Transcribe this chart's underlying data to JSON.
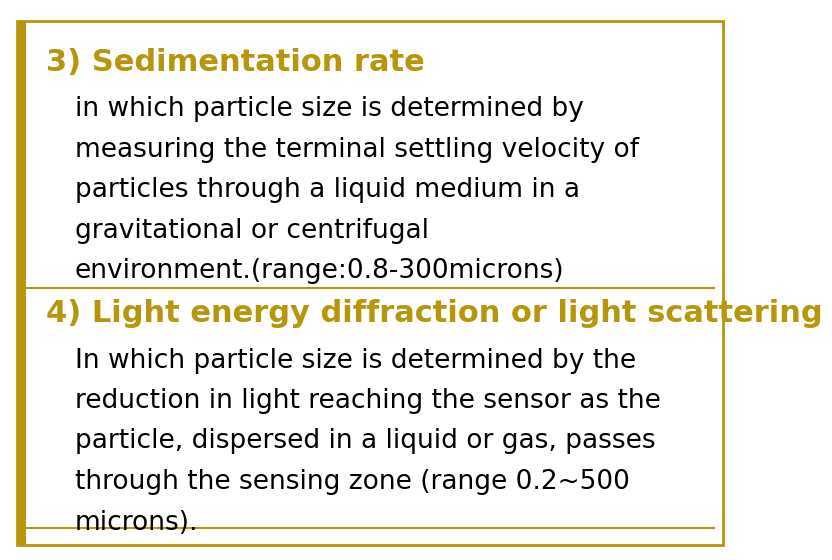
{
  "background_color": "#ffffff",
  "border_color": "#b8960c",
  "title3_text": "3) Sedimentation rate",
  "title3_color": "#b8960c",
  "title3_fontsize": 22,
  "body3_lines": [
    "in which particle size is determined by",
    "measuring the terminal settling velocity of",
    "particles through a liquid medium in a",
    "gravitational or centrifugal",
    "environment.(range:0.8-300microns)"
  ],
  "body3_color": "#000000",
  "body3_fontsize": 19,
  "title4_text": "4) Light energy diffraction or light scattering",
  "title4_color": "#b8960c",
  "title4_fontsize": 22,
  "body4_lines": [
    "In which particle size is determined by the",
    "reduction in light reaching the sensor as the",
    "particle, dispersed in a liquid or gas, passes",
    "through the sensing zone (range 0.2~500",
    "microns)."
  ],
  "body4_color": "#000000",
  "body4_fontsize": 19,
  "divider_color": "#b8960c",
  "left_bar_color": "#b8960c",
  "font_family": "DejaVu Sans"
}
